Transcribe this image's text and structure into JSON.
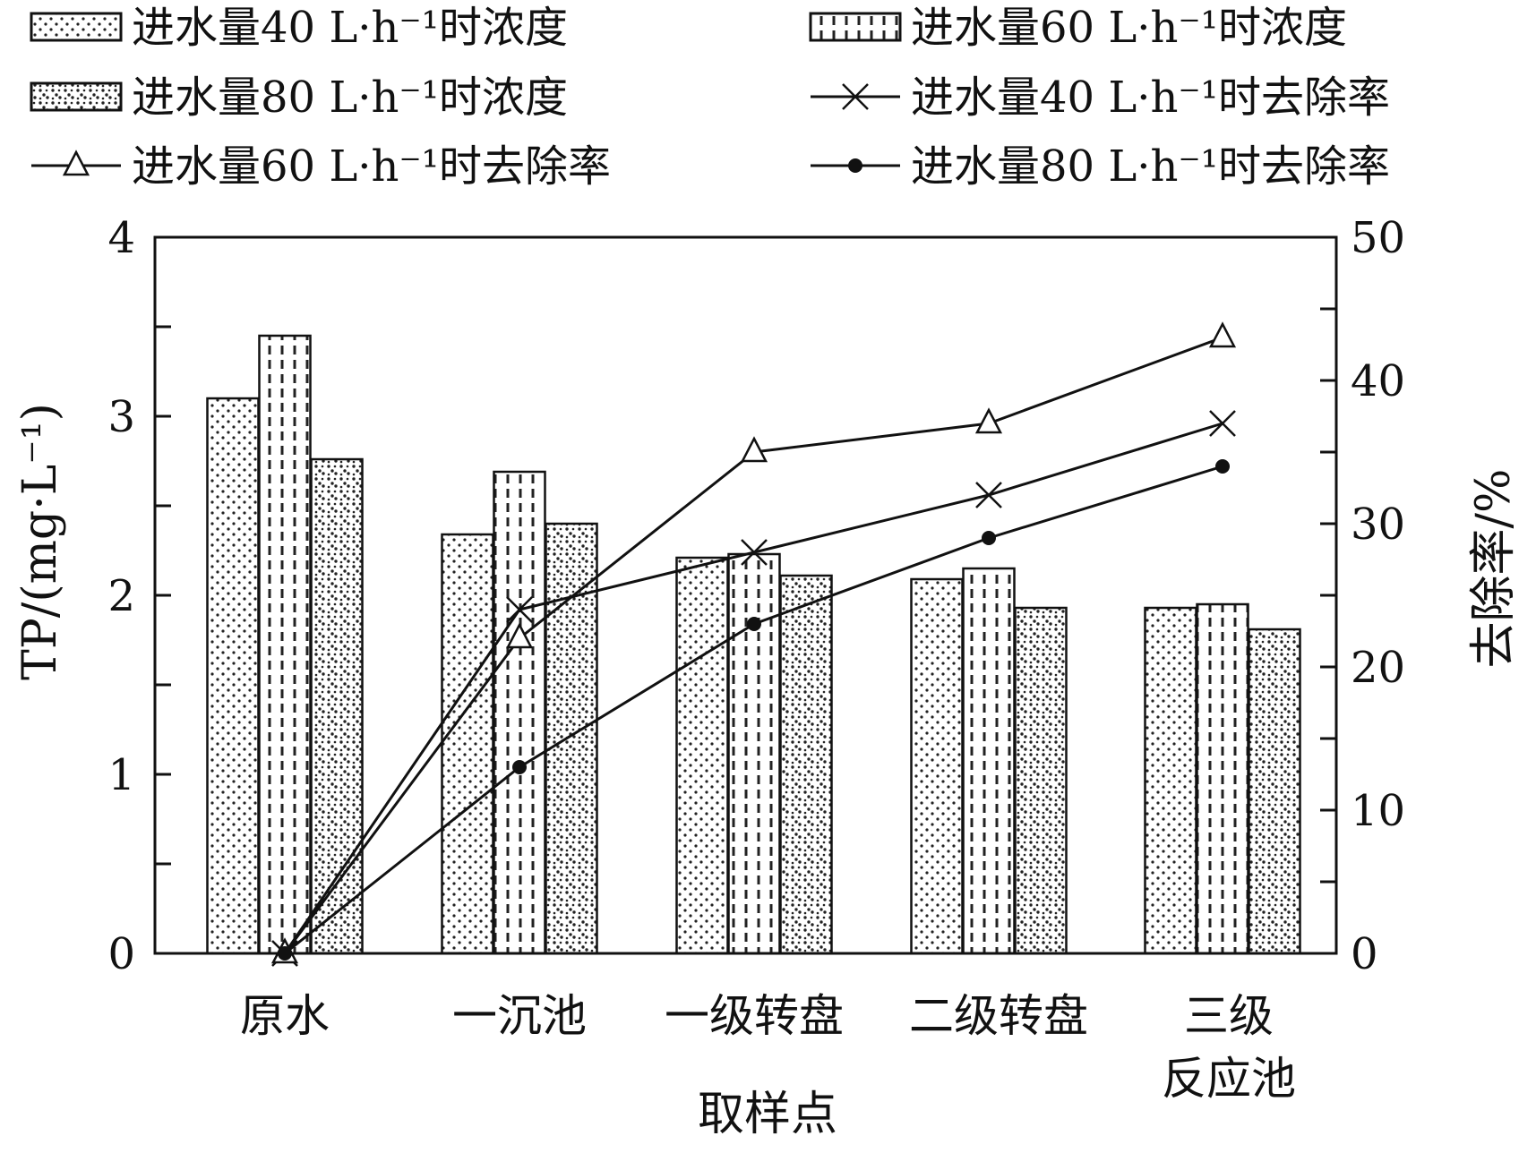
{
  "chart_data": {
    "type": "bar",
    "xlabel": "取样点",
    "ylabel_left": "TP/(mg·L⁻¹)",
    "ylabel_right": "去除率/%",
    "categories": [
      {
        "line1": "原水",
        "line2": ""
      },
      {
        "line1": "一沉池",
        "line2": ""
      },
      {
        "line1": "一级转盘",
        "line2": ""
      },
      {
        "line1": "二级转盘",
        "line2": ""
      },
      {
        "line1": "三级",
        "line2": "反应池"
      }
    ],
    "ylim_left": [
      0,
      4
    ],
    "ylim_right": [
      0,
      50
    ],
    "yticks_left": [
      "0",
      "1",
      "2",
      "3",
      "4"
    ],
    "yticks_right": [
      "0",
      "10",
      "20",
      "30",
      "40",
      "50"
    ],
    "bar_series": [
      {
        "name": "进水量40 L·h⁻¹时浓度",
        "pattern": "dots",
        "values": [
          3.1,
          2.34,
          2.21,
          2.09,
          1.93
        ]
      },
      {
        "name": "进水量60 L·h⁻¹时浓度",
        "pattern": "dashes",
        "values": [
          3.45,
          2.69,
          2.23,
          2.15,
          1.95
        ]
      },
      {
        "name": "进水量80 L·h⁻¹时浓度",
        "pattern": "crosshatch",
        "values": [
          2.76,
          2.4,
          2.11,
          1.93,
          1.81
        ]
      }
    ],
    "line_series": [
      {
        "name": "进水量40 L·h⁻¹时去除率",
        "marker": "x",
        "values": [
          0,
          24.0,
          28.0,
          32.0,
          37.0
        ]
      },
      {
        "name": "进水量60 L·h⁻¹时去除率",
        "marker": "triangle",
        "values": [
          0,
          22.0,
          35.0,
          37.0,
          43.0
        ]
      },
      {
        "name": "进水量80 L·h⁻¹时去除率",
        "marker": "dot",
        "values": [
          0,
          13.0,
          23.0,
          29.0,
          34.0
        ]
      }
    ],
    "legend": {
      "placement": "top",
      "rows": [
        [
          {
            "label": "进水量40 L·h⁻¹时浓度",
            "kind": "bar",
            "pattern": "dots"
          },
          {
            "label": "进水量60 L·h⁻¹时浓度",
            "kind": "bar",
            "pattern": "dashes"
          }
        ],
        [
          {
            "label": "进水量80 L·h⁻¹时浓度",
            "kind": "bar",
            "pattern": "crosshatch"
          },
          {
            "label": "进水量40 L·h⁻¹时去除率",
            "kind": "line",
            "marker": "x"
          }
        ],
        [
          {
            "label": "进水量60 L·h⁻¹时去除率",
            "kind": "line",
            "marker": "triangle"
          },
          {
            "label": "进水量80 L·h⁻¹时去除率",
            "kind": "line",
            "marker": "dot"
          }
        ]
      ]
    }
  }
}
